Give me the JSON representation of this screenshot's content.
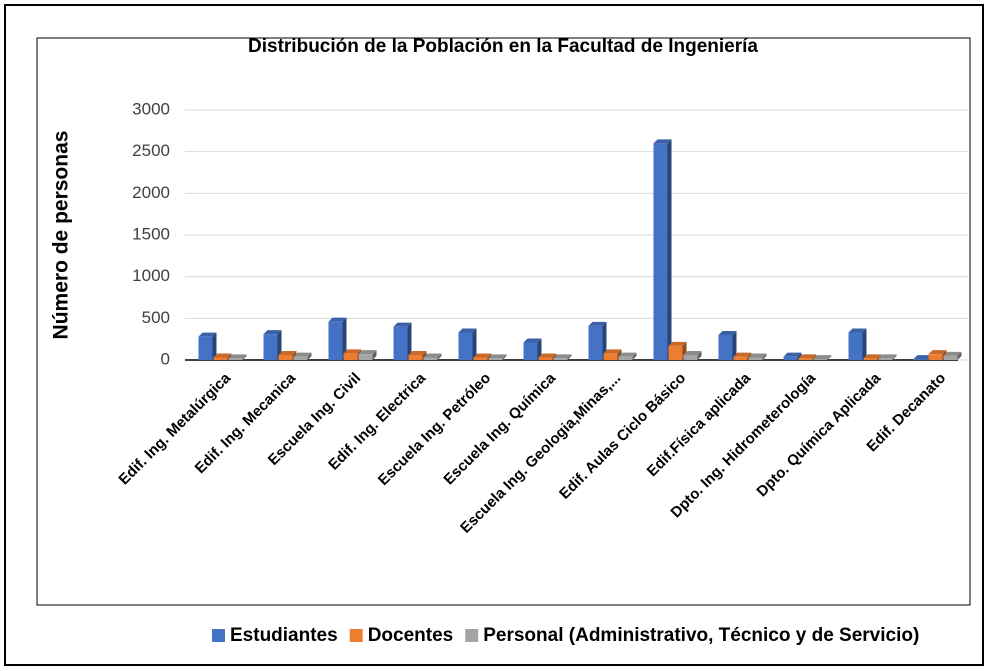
{
  "chart_data": {
    "type": "bar3d",
    "title": "Distribución de la Población en la Facultad de Ingeniería",
    "ylabel": "Número de personas",
    "categories": [
      "Edif. Ing. Metalúrgica",
      "Edif. Ing. Mecanica",
      "Escuela Ing. Civil",
      "Edif. Ing. Electrica",
      "Escuela Ing. Petróleo",
      "Escuela Ing. Química",
      "Escuela Ing. Geologia,Minas,...",
      "Edif. Aulas Ciclo Básico",
      "Edif.Física aplicada",
      "Dpto. Ing. Hidrometerología",
      "Dpto. Química Aplicada",
      "Edif. Decanato"
    ],
    "series": [
      {
        "name": "Estudiantes",
        "color": "#4472c4",
        "values": [
          280,
          310,
          460,
          400,
          330,
          210,
          410,
          2600,
          300,
          40,
          330,
          10
        ]
      },
      {
        "name": "Docentes",
        "color": "#ed7d31",
        "values": [
          30,
          60,
          80,
          60,
          30,
          30,
          80,
          170,
          40,
          20,
          20,
          70
        ]
      },
      {
        "name": "Personal (Administrativo, Técnico y de Servicio)",
        "color": "#a5a5a5",
        "values": [
          20,
          40,
          70,
          30,
          20,
          20,
          40,
          60,
          30,
          10,
          20,
          50
        ]
      }
    ],
    "ylim": [
      0,
      3000
    ],
    "yticks": [
      0,
      500,
      1000,
      1500,
      2000,
      2500,
      3000
    ],
    "grid": true,
    "legend": "bottom"
  }
}
